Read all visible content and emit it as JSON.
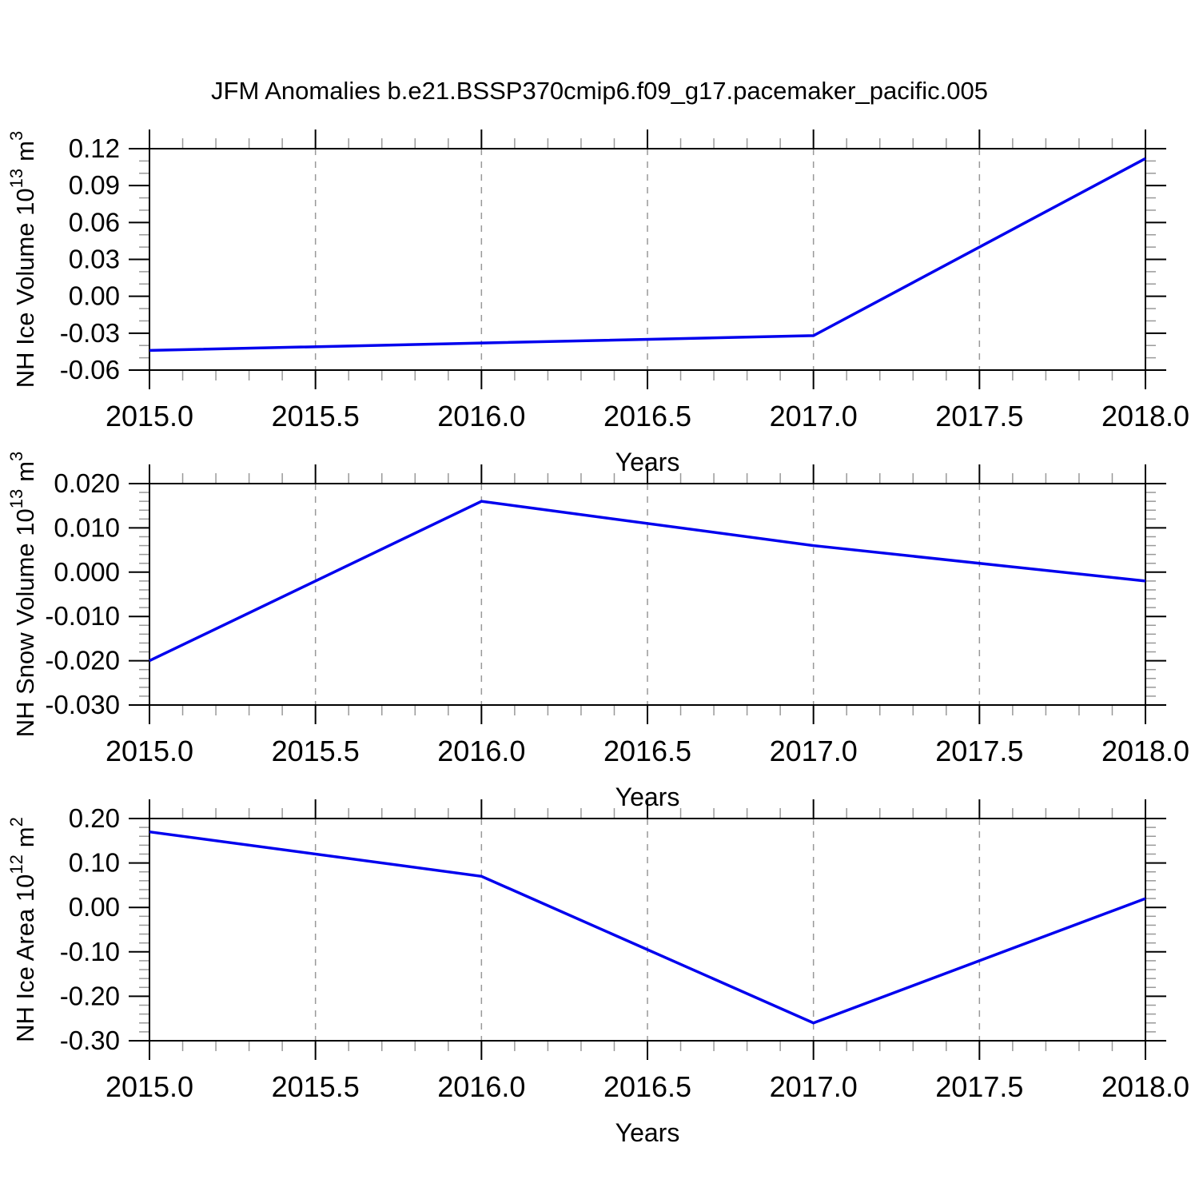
{
  "title": "JFM Anomalies b.e21.BSSP370cmip6.f09_g17.pacemaker_pacific.005",
  "colors": {
    "line": "#0000ee",
    "frame": "#000000",
    "major_tick": "#000000",
    "minor_tick": "#999999",
    "grid": "#999999"
  },
  "chart_data": [
    {
      "type": "line",
      "x": [
        2015,
        2016,
        2017,
        2018
      ],
      "values": [
        -0.044,
        -0.038,
        -0.032,
        0.112
      ],
      "xlabel": "Years",
      "ylabel": {
        "base": "NH Ice Volume 10",
        "exp": "13",
        "unit": "m",
        "unit_exp": "3"
      },
      "xlim": [
        2015.0,
        2018.0
      ],
      "ylim": [
        -0.06,
        0.12
      ],
      "x_major_step": 0.5,
      "x_minor_step": 0.1,
      "y_major_step": 0.03,
      "y_minor_step": 0.01,
      "x_tick_labels": [
        "2015.0",
        "2015.5",
        "2016.0",
        "2016.5",
        "2017.0",
        "2017.5",
        "2018.0"
      ],
      "y_tick_labels": [
        "0.12",
        "0.09",
        "0.06",
        "0.03",
        "0.00",
        "-0.03",
        "-0.06"
      ],
      "grid": "vertical-dashed",
      "legend": "none"
    },
    {
      "type": "line",
      "x": [
        2015,
        2016,
        2017,
        2018
      ],
      "values": [
        -0.02,
        0.016,
        0.006,
        -0.002
      ],
      "xlabel": "Years",
      "ylabel": {
        "base": "NH Snow Volume 10",
        "exp": "13",
        "unit": "m",
        "unit_exp": "3"
      },
      "xlim": [
        2015.0,
        2018.0
      ],
      "ylim": [
        -0.03,
        0.02
      ],
      "x_major_step": 0.5,
      "x_minor_step": 0.1,
      "y_major_step": 0.01,
      "y_minor_step": 0.002,
      "x_tick_labels": [
        "2015.0",
        "2015.5",
        "2016.0",
        "2016.5",
        "2017.0",
        "2017.5",
        "2018.0"
      ],
      "y_tick_labels": [
        "0.020",
        "0.010",
        "0.000",
        "-0.010",
        "-0.020",
        "-0.030"
      ],
      "grid": "vertical-dashed",
      "legend": "none"
    },
    {
      "type": "line",
      "x": [
        2015,
        2016,
        2017,
        2018
      ],
      "values": [
        0.17,
        0.07,
        -0.26,
        0.02
      ],
      "xlabel": "Years",
      "ylabel": {
        "base": "NH Ice Area 10",
        "exp": "12",
        "unit": "m",
        "unit_exp": "2"
      },
      "xlim": [
        2015.0,
        2018.0
      ],
      "ylim": [
        -0.3,
        0.2
      ],
      "x_major_step": 0.5,
      "x_minor_step": 0.1,
      "y_major_step": 0.1,
      "y_minor_step": 0.02,
      "x_tick_labels": [
        "2015.0",
        "2015.5",
        "2016.0",
        "2016.5",
        "2017.0",
        "2017.5",
        "2018.0"
      ],
      "y_tick_labels": [
        "0.20",
        "0.10",
        "0.00",
        "-0.10",
        "-0.20",
        "-0.30"
      ],
      "grid": "vertical-dashed",
      "legend": "none"
    }
  ]
}
